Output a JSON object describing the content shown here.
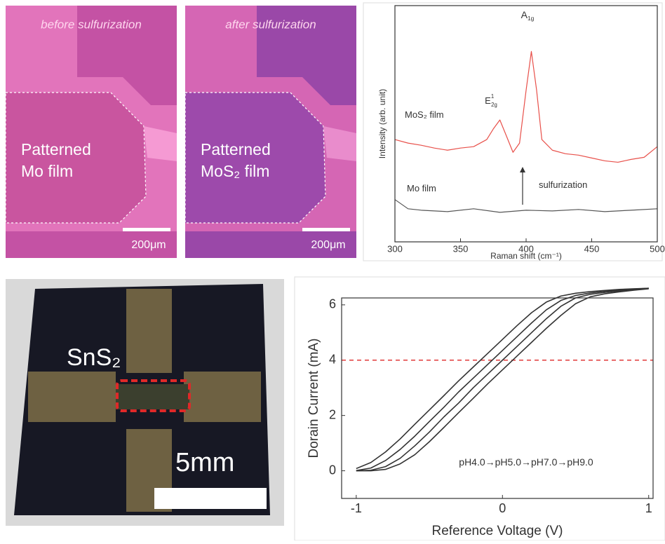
{
  "micrographs": [
    {
      "caption": "before sulfurization",
      "label_lines": [
        "Patterned",
        "Mo film"
      ],
      "scale_bar": "200μm"
    },
    {
      "caption": "after sulfurization",
      "label_lines": [
        "Patterned",
        "MoS₂ film"
      ],
      "scale_bar": "200μm"
    }
  ],
  "photo": {
    "label": "SnS₂",
    "scale_bar": "5mm"
  },
  "chart_data": [
    {
      "type": "line",
      "xlabel": "Raman shift (cm⁻¹)",
      "ylabel": "Intensity (arb. unit)",
      "xlim": [
        300,
        500
      ],
      "xticks": [
        300,
        350,
        400,
        450,
        500
      ],
      "ylim": [
        0,
        100
      ],
      "series": [
        {
          "color": "#e8504a",
          "x": [
            300,
            310,
            320,
            330,
            340,
            350,
            360,
            370,
            375,
            380,
            385,
            390,
            395,
            400,
            404,
            408,
            412,
            420,
            430,
            440,
            450,
            460,
            470,
            480,
            490,
            500
          ],
          "values": [
            43.3,
            41.8,
            40.9,
            39.7,
            38.8,
            39.7,
            40.3,
            43.3,
            47.8,
            51.6,
            44.8,
            37.9,
            41.8,
            64.2,
            80.6,
            64.2,
            43.3,
            38.8,
            37.3,
            36.7,
            35.5,
            34.3,
            33.7,
            34.9,
            35.8,
            40.3
          ]
        },
        {
          "color": "#555555",
          "x": [
            300,
            310,
            320,
            340,
            360,
            380,
            400,
            420,
            440,
            460,
            480,
            500
          ],
          "values": [
            17.9,
            14.0,
            13.4,
            12.8,
            14.0,
            12.5,
            13.4,
            13.1,
            13.7,
            12.8,
            13.4,
            14.0
          ]
        }
      ],
      "annotations": [
        {
          "text": "MoS₂ film"
        },
        {
          "text": "Mo film"
        },
        {
          "text": "E",
          "sub": "2g",
          "sup": "1"
        },
        {
          "text": "A",
          "sub": "1g"
        },
        {
          "text": "sulfurization"
        }
      ]
    },
    {
      "type": "line",
      "xlabel": "Reference Voltage (V)",
      "ylabel": "Dorain Current (mA)",
      "xlim": [
        -1.1,
        1.03
      ],
      "xticks": [
        -1,
        0,
        1
      ],
      "ylim": [
        -1,
        6.25
      ],
      "yticks": [
        0,
        2,
        4,
        6
      ],
      "x": [
        -1,
        -0.9,
        -0.8,
        -0.7,
        -0.6,
        -0.5,
        -0.4,
        -0.3,
        -0.2,
        -0.1,
        0,
        0.1,
        0.2,
        0.3,
        0.4,
        0.5,
        0.6,
        0.7,
        0.8,
        0.9,
        1
      ],
      "series": [
        {
          "color": "#333333",
          "values": [
            0.08,
            0.3,
            0.68,
            1.15,
            1.68,
            2.2,
            2.72,
            3.25,
            3.75,
            4.25,
            4.75,
            5.25,
            5.72,
            6.1,
            6.32,
            6.42,
            6.48,
            6.52,
            6.56,
            6.58,
            6.6
          ]
        },
        {
          "color": "#333333",
          "values": [
            0.01,
            0.1,
            0.37,
            0.77,
            1.25,
            1.78,
            2.3,
            2.85,
            3.35,
            3.85,
            4.35,
            4.85,
            5.35,
            5.82,
            6.16,
            6.34,
            6.43,
            6.49,
            6.53,
            6.57,
            6.6
          ]
        },
        {
          "color": "#333333",
          "values": [
            0,
            0.02,
            0.15,
            0.45,
            0.9,
            1.4,
            1.95,
            2.45,
            3.0,
            3.5,
            4.0,
            4.5,
            5.0,
            5.5,
            5.95,
            6.25,
            6.38,
            6.45,
            6.5,
            6.55,
            6.6
          ]
        },
        {
          "color": "#333333",
          "values": [
            0,
            0,
            0.05,
            0.25,
            0.58,
            1.05,
            1.57,
            2.1,
            2.62,
            3.15,
            3.65,
            4.15,
            4.65,
            5.15,
            5.62,
            6.04,
            6.29,
            6.4,
            6.47,
            6.53,
            6.58
          ]
        }
      ],
      "hline": {
        "value": 4,
        "color": "#e03a3a"
      },
      "annotations": [
        {
          "text": "pH4.0→pH5.0→pH7.0→pH9.0"
        }
      ]
    }
  ]
}
